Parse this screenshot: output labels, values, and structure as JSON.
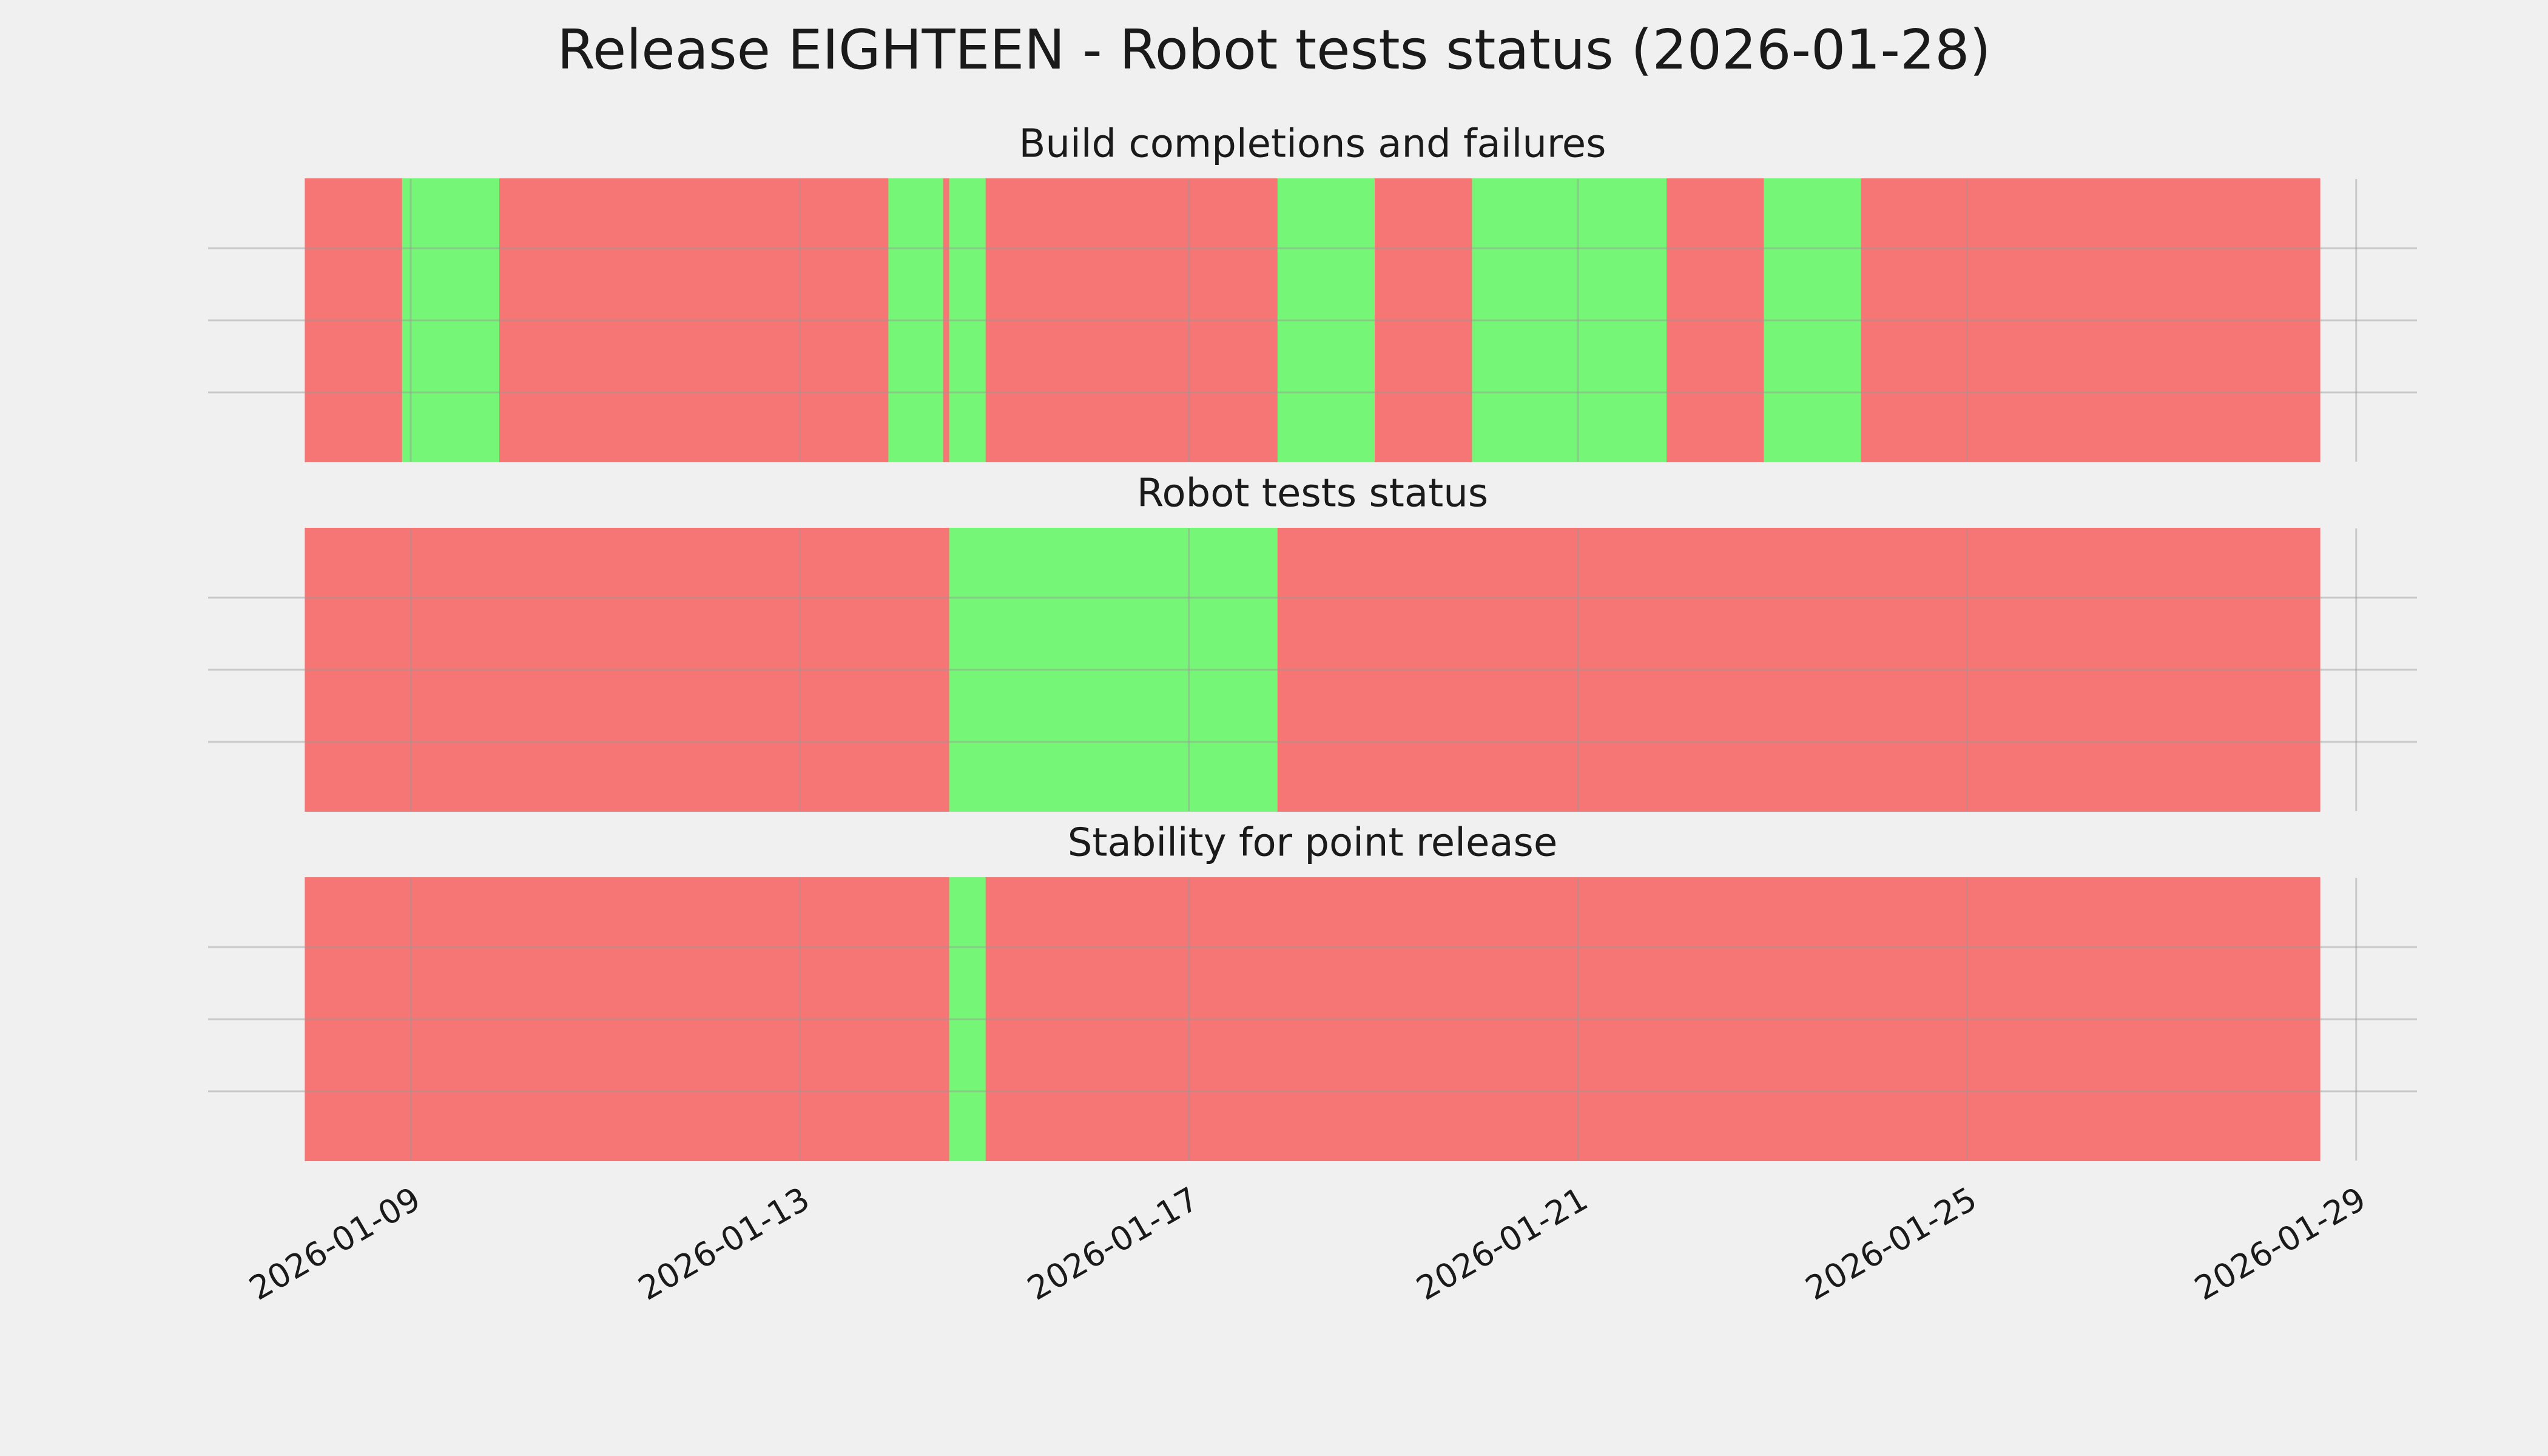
{
  "title": "Release EIGHTEEN - Robot tests status (2026-01-28)",
  "chart_data": [
    {
      "type": "timeline",
      "title": "Build completions and failures",
      "segments": [
        {
          "start": "2026-01-07T22:00",
          "end": "2026-01-08T22:00",
          "color": "#f67676"
        },
        {
          "start": "2026-01-08T22:00",
          "end": "2026-01-09T22:00",
          "color": "#76f676"
        },
        {
          "start": "2026-01-09T22:00",
          "end": "2026-01-13T22:00",
          "color": "#f67676"
        },
        {
          "start": "2026-01-13T22:00",
          "end": "2026-01-14T11:30",
          "color": "#76f676"
        },
        {
          "start": "2026-01-14T11:30",
          "end": "2026-01-14T13:00",
          "color": "#f67676"
        },
        {
          "start": "2026-01-14T13:00",
          "end": "2026-01-14T22:00",
          "color": "#76f676"
        },
        {
          "start": "2026-01-14T22:00",
          "end": "2026-01-17T22:00",
          "color": "#f67676"
        },
        {
          "start": "2026-01-17T22:00",
          "end": "2026-01-18T22:00",
          "color": "#76f676"
        },
        {
          "start": "2026-01-18T22:00",
          "end": "2026-01-19T22:00",
          "color": "#f67676"
        },
        {
          "start": "2026-01-19T22:00",
          "end": "2026-01-21T22:00",
          "color": "#76f676"
        },
        {
          "start": "2026-01-21T22:00",
          "end": "2026-01-22T22:00",
          "color": "#f67676"
        },
        {
          "start": "2026-01-22T22:00",
          "end": "2026-01-23T22:00",
          "color": "#76f676"
        },
        {
          "start": "2026-01-23T22:00",
          "end": "2026-01-28T15:00",
          "color": "#f67676"
        }
      ],
      "xlim": [
        "2026-01-06T22:00",
        "2026-01-29T15:00"
      ],
      "xticks": [
        "2026-01-09",
        "2026-01-13",
        "2026-01-17",
        "2026-01-21",
        "2026-01-25",
        "2026-01-29"
      ],
      "grid": true
    },
    {
      "type": "timeline",
      "title": "Robot tests status",
      "segments": [
        {
          "start": "2026-01-07T22:00",
          "end": "2026-01-14T13:00",
          "color": "#f67676"
        },
        {
          "start": "2026-01-14T13:00",
          "end": "2026-01-17T22:00",
          "color": "#76f676"
        },
        {
          "start": "2026-01-17T22:00",
          "end": "2026-01-28T15:00",
          "color": "#f67676"
        }
      ],
      "xlim": [
        "2026-01-06T22:00",
        "2026-01-29T15:00"
      ],
      "xticks": [
        "2026-01-09",
        "2026-01-13",
        "2026-01-17",
        "2026-01-21",
        "2026-01-25",
        "2026-01-29"
      ],
      "grid": true
    },
    {
      "type": "timeline",
      "title": "Stability for point release",
      "segments": [
        {
          "start": "2026-01-07T22:00",
          "end": "2026-01-14T13:00",
          "color": "#f67676"
        },
        {
          "start": "2026-01-14T13:00",
          "end": "2026-01-14T22:00",
          "color": "#76f676"
        },
        {
          "start": "2026-01-14T22:00",
          "end": "2026-01-28T15:00",
          "color": "#f67676"
        }
      ],
      "xlim": [
        "2026-01-06T22:00",
        "2026-01-29T15:00"
      ],
      "xticks": [
        "2026-01-09",
        "2026-01-13",
        "2026-01-17",
        "2026-01-21",
        "2026-01-25",
        "2026-01-29"
      ],
      "grid": true
    }
  ]
}
